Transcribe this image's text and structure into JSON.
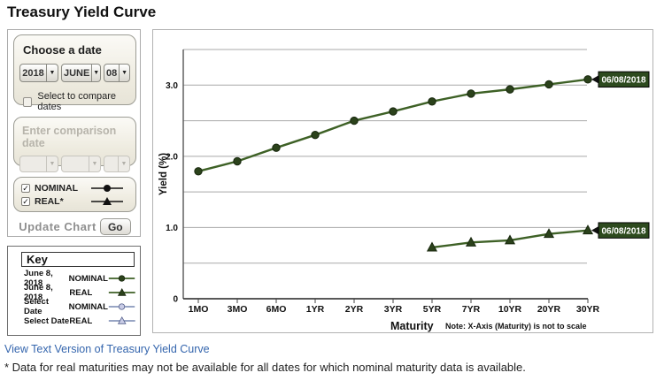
{
  "page_title": "Treasury Yield Curve",
  "icons": {
    "dropdown_arrow": "▼",
    "checkmark": "✓"
  },
  "colors": {
    "series_green": "#3e6126",
    "marker_fill": "#2b421b",
    "marker_edge": "#18270e",
    "compare_blue": "#7787b1",
    "compare_fill": "#c9cce6",
    "date_label_bg": "#2d4a1e",
    "link_blue": "#3465ad",
    "grid_gray": "#a9a9a9"
  },
  "controls": {
    "choose_date": {
      "title": "Choose a date",
      "year": "2018",
      "month": "JUNE",
      "day": "08",
      "compare_checkbox_label": "Select to compare dates",
      "compare_checked": false
    },
    "comparison": {
      "title": "Enter comparison date"
    },
    "series_toggle": {
      "nominal_label": "NOMINAL",
      "real_label": "REAL*",
      "nominal_checked": true,
      "real_checked": true
    },
    "update_chart_label": "Update Chart",
    "go_button_label": "Go"
  },
  "key": {
    "title": "Key",
    "rows": [
      {
        "date": "June 8, 2018",
        "type": "NOMINAL",
        "symbol": "filled-circle",
        "color": "green"
      },
      {
        "date": "June 8, 2018",
        "type": "REAL",
        "symbol": "filled-triangle",
        "color": "green"
      },
      {
        "date": "Select Date",
        "type": "NOMINAL",
        "symbol": "open-circle",
        "color": "blue"
      },
      {
        "date": "Select Date",
        "type": "REAL",
        "symbol": "open-triangle",
        "color": "blue"
      }
    ]
  },
  "chart_data": {
    "type": "line",
    "categories": [
      "1MO",
      "3MO",
      "6MO",
      "1YR",
      "2YR",
      "3YR",
      "5YR",
      "7YR",
      "10YR",
      "20YR",
      "30YR"
    ],
    "series": [
      {
        "name": "June 8, 2018 NOMINAL",
        "marker": "circle",
        "end_label": "06/08/2018",
        "values": [
          1.79,
          1.93,
          2.12,
          2.3,
          2.5,
          2.63,
          2.77,
          2.88,
          2.94,
          3.01,
          3.08
        ]
      },
      {
        "name": "June 8, 2018 REAL",
        "marker": "triangle",
        "end_label": "06/08/2018",
        "values": [
          null,
          null,
          null,
          null,
          null,
          null,
          0.72,
          0.79,
          0.82,
          0.91,
          0.96
        ]
      }
    ],
    "xlabel": "Maturity",
    "x_note": "Note: X-Axis (Maturity) is not to scale",
    "ylabel": "Yield (%)",
    "ylim": [
      0,
      3.5
    ],
    "grid_step": 0.5,
    "grid": true,
    "ytick_values": [
      0,
      1,
      2,
      3
    ],
    "ytick_labels": [
      "0",
      "1.0",
      "2.0",
      "3.0"
    ],
    "legend_position": "external-key-box"
  },
  "footer": {
    "link_text": "View Text Version of Treasury Yield Curve",
    "note_text": "* Data for real maturities may not be available for all dates for which nominal maturity data is available."
  }
}
